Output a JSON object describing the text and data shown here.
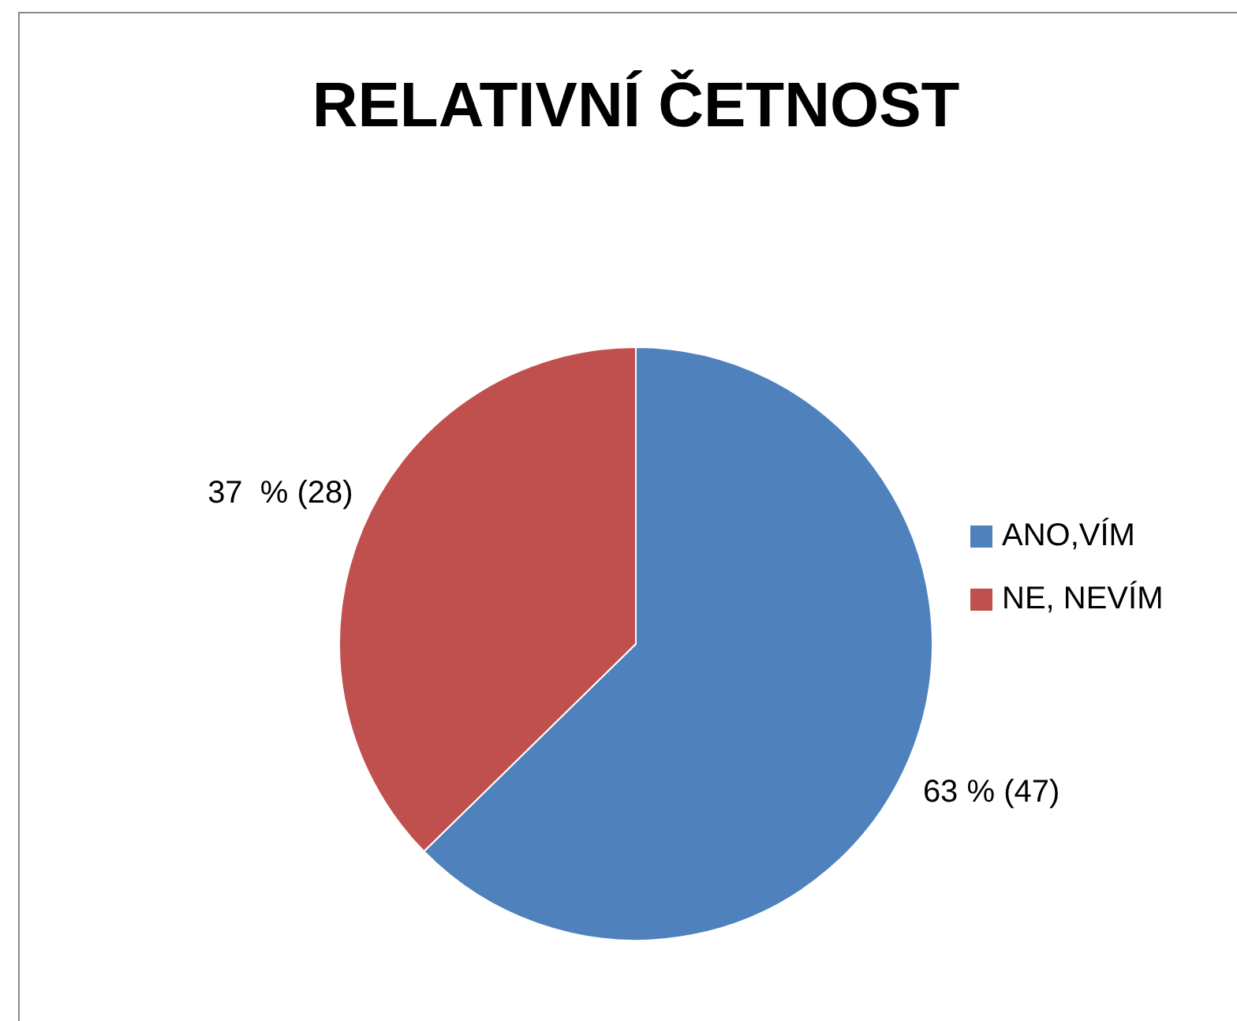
{
  "chart_data": {
    "type": "pie",
    "title": "RELATIVNÍ ČETNOST",
    "categories": [
      "ANO,VÍM",
      "NE, NEVÍM"
    ],
    "values": [
      47,
      28
    ],
    "colors": [
      "#4f81bd",
      "#c0504d"
    ],
    "value_labels": [
      "63 % (47)",
      "37  % (28)"
    ],
    "legend": "right"
  }
}
